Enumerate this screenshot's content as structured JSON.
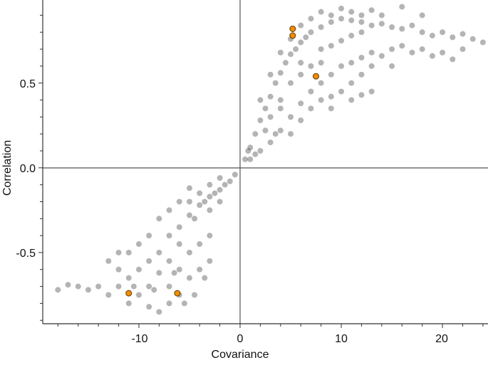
{
  "chart_data": {
    "type": "scatter",
    "title": "",
    "xlabel": "Covariance",
    "ylabel": "Correlation",
    "xlim": [
      -19.5,
      24.5
    ],
    "ylim": [
      -0.92,
      0.99
    ],
    "xticks": [
      -10,
      0,
      10,
      20
    ],
    "xtick_labels": [
      "-10",
      "0",
      "10",
      "20"
    ],
    "yticks": [
      -0.5,
      0.0,
      0.5
    ],
    "ytick_labels": [
      "-0.5",
      "0.0",
      "0.5"
    ],
    "grid": false,
    "reference_lines": {
      "x": 0,
      "y": 0
    },
    "colors": {
      "points": "#3a3a3a",
      "highlight": "#f28c00",
      "highlight_edge": "#5a3a00"
    },
    "series": [
      {
        "role": "all",
        "points": [
          [
            0.5,
            0.05
          ],
          [
            1,
            0.12
          ],
          [
            1.5,
            0.2
          ],
          [
            2,
            0.28
          ],
          [
            2.5,
            0.35
          ],
          [
            3,
            0.42
          ],
          [
            3.5,
            0.5
          ],
          [
            4,
            0.56
          ],
          [
            4.5,
            0.62
          ],
          [
            5,
            0.67
          ],
          [
            5.5,
            0.7
          ],
          [
            6,
            0.74
          ],
          [
            6.5,
            0.77
          ],
          [
            7,
            0.8
          ],
          [
            8,
            0.83
          ],
          [
            9,
            0.86
          ],
          [
            10,
            0.88
          ],
          [
            11,
            0.87
          ],
          [
            12,
            0.86
          ],
          [
            13,
            0.84
          ],
          [
            14,
            0.85
          ],
          [
            15,
            0.83
          ],
          [
            16,
            0.82
          ],
          [
            17,
            0.84
          ],
          [
            18,
            0.8
          ],
          [
            19,
            0.78
          ],
          [
            20,
            0.8
          ],
          [
            21,
            0.77
          ],
          [
            22,
            0.79
          ],
          [
            23,
            0.76
          ],
          [
            24,
            0.74
          ],
          [
            1,
            0.05
          ],
          [
            2,
            0.1
          ],
          [
            3,
            0.15
          ],
          [
            4,
            0.22
          ],
          [
            5,
            0.3
          ],
          [
            6,
            0.38
          ],
          [
            7,
            0.45
          ],
          [
            8,
            0.5
          ],
          [
            9,
            0.55
          ],
          [
            10,
            0.6
          ],
          [
            11,
            0.62
          ],
          [
            12,
            0.65
          ],
          [
            13,
            0.68
          ],
          [
            14,
            0.66
          ],
          [
            15,
            0.7
          ],
          [
            16,
            0.72
          ],
          [
            17,
            0.68
          ],
          [
            18,
            0.7
          ],
          [
            19,
            0.66
          ],
          [
            20,
            0.68
          ],
          [
            21,
            0.64
          ],
          [
            22,
            0.7
          ],
          [
            2,
            0.4
          ],
          [
            3,
            0.55
          ],
          [
            4,
            0.68
          ],
          [
            5,
            0.76
          ],
          [
            6,
            0.84
          ],
          [
            7,
            0.88
          ],
          [
            8,
            0.92
          ],
          [
            9,
            0.9
          ],
          [
            10,
            0.94
          ],
          [
            11,
            0.92
          ],
          [
            12,
            0.9
          ],
          [
            13,
            0.93
          ],
          [
            14,
            0.9
          ],
          [
            16,
            0.95
          ],
          [
            18,
            0.9
          ],
          [
            3,
            0.3
          ],
          [
            4,
            0.4
          ],
          [
            5,
            0.5
          ],
          [
            6,
            0.55
          ],
          [
            7,
            0.6
          ],
          [
            8,
            0.7
          ],
          [
            9,
            0.72
          ],
          [
            10,
            0.75
          ],
          [
            11,
            0.78
          ],
          [
            12,
            0.8
          ],
          [
            3.5,
            0.2
          ],
          [
            5,
            0.2
          ],
          [
            6,
            0.28
          ],
          [
            7,
            0.35
          ],
          [
            8,
            0.4
          ],
          [
            9,
            0.42
          ],
          [
            10,
            0.45
          ],
          [
            11,
            0.5
          ],
          [
            12,
            0.55
          ],
          [
            13,
            0.6
          ],
          [
            15,
            0.6
          ],
          [
            6,
            0.62
          ],
          [
            8,
            0.62
          ],
          [
            4,
            0.35
          ],
          [
            2.5,
            0.22
          ],
          [
            1.5,
            0.08
          ],
          [
            0.8,
            0.1
          ],
          [
            13,
            0.45
          ],
          [
            12,
            0.43
          ],
          [
            11,
            0.4
          ],
          [
            9,
            0.35
          ],
          [
            -0.5,
            -0.04
          ],
          [
            -1,
            -0.08
          ],
          [
            -1.5,
            -0.1
          ],
          [
            -2,
            -0.13
          ],
          [
            -2.5,
            -0.15
          ],
          [
            -3,
            -0.17
          ],
          [
            -3.5,
            -0.2
          ],
          [
            -4,
            -0.22
          ],
          [
            -4,
            -0.15
          ],
          [
            -3,
            -0.1
          ],
          [
            -2,
            -0.06
          ],
          [
            -5,
            -0.28
          ],
          [
            -5,
            -0.2
          ],
          [
            -4.5,
            -0.3
          ],
          [
            -6,
            -0.35
          ],
          [
            -6,
            -0.45
          ],
          [
            -7,
            -0.4
          ],
          [
            -7,
            -0.55
          ],
          [
            -8,
            -0.5
          ],
          [
            -8,
            -0.62
          ],
          [
            -9,
            -0.55
          ],
          [
            -9,
            -0.7
          ],
          [
            -10,
            -0.6
          ],
          [
            -10,
            -0.75
          ],
          [
            -11,
            -0.65
          ],
          [
            -11,
            -0.8
          ],
          [
            -12,
            -0.7
          ],
          [
            -12,
            -0.6
          ],
          [
            -13,
            -0.75
          ],
          [
            -13,
            -0.55
          ],
          [
            -14,
            -0.7
          ],
          [
            -15,
            -0.72
          ],
          [
            -16,
            -0.7
          ],
          [
            -17,
            -0.69
          ],
          [
            -18,
            -0.72
          ],
          [
            -6,
            -0.6
          ],
          [
            -5,
            -0.5
          ],
          [
            -4,
            -0.45
          ],
          [
            -3,
            -0.4
          ],
          [
            -5,
            -0.65
          ],
          [
            -6,
            -0.75
          ],
          [
            -7,
            -0.8
          ],
          [
            -8,
            -0.85
          ],
          [
            -7,
            -0.7
          ],
          [
            -9,
            -0.82
          ],
          [
            -4,
            -0.6
          ],
          [
            -3,
            -0.55
          ],
          [
            -5.5,
            -0.8
          ],
          [
            -4.5,
            -0.75
          ],
          [
            -3.5,
            -0.65
          ],
          [
            -8,
            -0.3
          ],
          [
            -7,
            -0.25
          ],
          [
            -6,
            -0.2
          ],
          [
            -9,
            -0.4
          ],
          [
            -10,
            -0.45
          ],
          [
            -5,
            -0.12
          ],
          [
            -11,
            -0.5
          ],
          [
            -12,
            -0.5
          ],
          [
            -6.5,
            -0.62
          ],
          [
            -8.5,
            -0.72
          ],
          [
            -10.5,
            -0.7
          ],
          [
            -3,
            -0.25
          ],
          [
            -2,
            -0.2
          ]
        ]
      },
      {
        "role": "highlighted",
        "points": [
          [
            5.2,
            0.82
          ],
          [
            5.2,
            0.78
          ],
          [
            7.5,
            0.54
          ],
          [
            -11,
            -0.74
          ],
          [
            -6.2,
            -0.74
          ]
        ]
      }
    ]
  }
}
